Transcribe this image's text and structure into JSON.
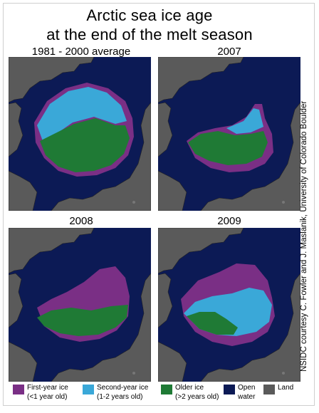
{
  "title_line1": "Arctic sea ice age",
  "title_line2": "at the end of the melt season",
  "credit": "NSIDC courtesy C. Fowler and J. Maslanik, University of Colorado Boulder",
  "colors": {
    "first_year": "#7a2f85",
    "second_year": "#3aa8d8",
    "older": "#1f7a35",
    "open_water": "#0c1a55",
    "land": "#5a5a5a"
  },
  "panels": [
    {
      "label": "1981 - 2000 average",
      "pattern": "average"
    },
    {
      "label": "2007",
      "pattern": "y2007"
    },
    {
      "label": "2008",
      "pattern": "y2008"
    },
    {
      "label": "2009",
      "pattern": "y2009"
    }
  ],
  "legend": [
    {
      "label": "First-year ice",
      "sub": "(<1 year old)",
      "color": "#7a2f85"
    },
    {
      "label": "Second-year ice",
      "sub": "(1-2 years old)",
      "color": "#3aa8d8"
    },
    {
      "label": "Older ice",
      "sub": "(>2 years old)",
      "color": "#1f7a35"
    },
    {
      "label": "Open",
      "sub": "water",
      "color": "#0c1a55"
    },
    {
      "label": "Land",
      "sub": "",
      "color": "#5a5a5a"
    }
  ]
}
